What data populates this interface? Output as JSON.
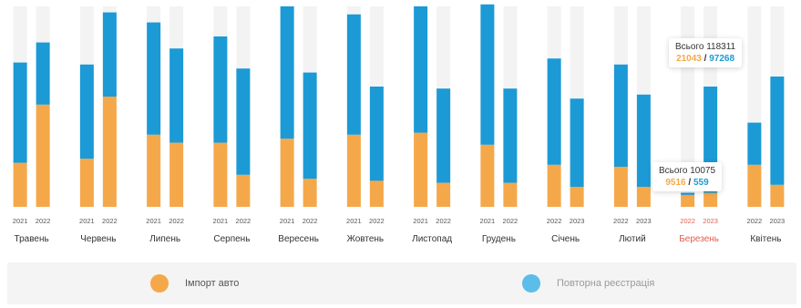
{
  "colors": {
    "import": "#f5a84a",
    "reregistration": "#1b9ad6",
    "track": "#f3f3f3",
    "highlight_month": "#e35d4f"
  },
  "chart_data": {
    "type": "bar",
    "stacked": true,
    "grid": false,
    "legend_position": "bottom",
    "ylim": [
      0,
      10
    ],
    "categories": [
      "Травень",
      "Червень",
      "Липень",
      "Серпень",
      "Вересень",
      "Жовтень",
      "Листопад",
      "Грудень",
      "Січень",
      "Лютий",
      "Березень",
      "Квітень"
    ],
    "year_labels": [
      [
        "2021",
        "2022"
      ],
      [
        "2021",
        "2022"
      ],
      [
        "2021",
        "2022"
      ],
      [
        "2021",
        "2022"
      ],
      [
        "2021",
        "2022"
      ],
      [
        "2021",
        "2022"
      ],
      [
        "2021",
        "2022"
      ],
      [
        "2021",
        "2022"
      ],
      [
        "2022",
        "2023"
      ],
      [
        "2022",
        "2023"
      ],
      [
        "2022",
        "2023"
      ],
      [
        "2022",
        "2023"
      ]
    ],
    "highlight_index": 10,
    "series": [
      {
        "name": "Імпорт авто",
        "values": [
          [
            2.2,
            5.1
          ],
          [
            2.4,
            5.5
          ],
          [
            3.6,
            3.2
          ],
          [
            3.2,
            1.6
          ],
          [
            3.4,
            1.4
          ],
          [
            3.6,
            1.3
          ],
          [
            3.7,
            1.2
          ],
          [
            3.1,
            1.2
          ],
          [
            2.1,
            1.0
          ],
          [
            2.0,
            1.0
          ],
          [
            0.6,
            0.7
          ],
          [
            2.1,
            1.1
          ]
        ]
      },
      {
        "name": "Повторна реєстрація",
        "values": [
          [
            5.0,
            3.1
          ],
          [
            4.7,
            4.2
          ],
          [
            5.6,
            4.7
          ],
          [
            5.3,
            5.3
          ],
          [
            6.6,
            5.3
          ],
          [
            6.0,
            4.7
          ],
          [
            6.3,
            4.7
          ],
          [
            7.0,
            4.7
          ],
          [
            5.3,
            4.4
          ],
          [
            5.1,
            4.6
          ],
          [
            0.1,
            5.3
          ],
          [
            2.1,
            5.4
          ]
        ]
      }
    ],
    "tooltips": [
      {
        "total_label": "Всього 118311",
        "import": "21043",
        "sep": "/",
        "reregistration": "97268"
      },
      {
        "total_label": "Всього 10075",
        "import": "9516",
        "sep": "/",
        "reregistration": "559"
      }
    ]
  },
  "legend": {
    "import_label": "Імпорт авто",
    "reregistration_label": "Повторна реєстрація"
  }
}
